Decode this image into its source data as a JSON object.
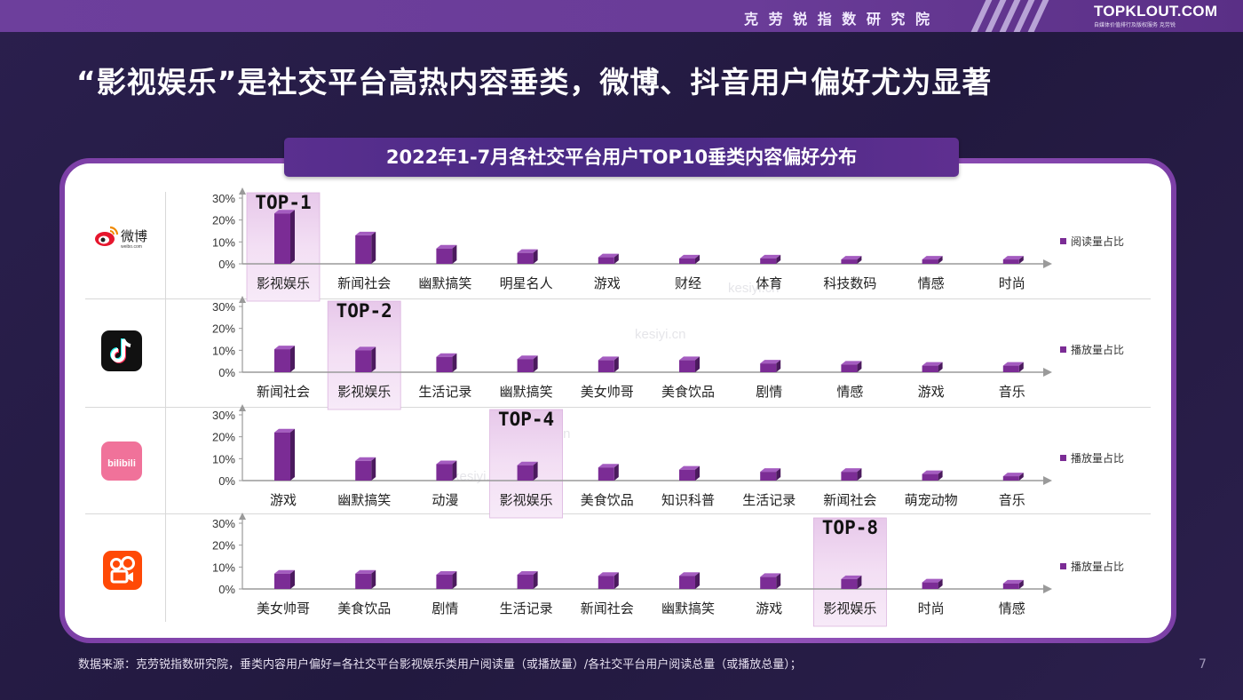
{
  "header": {
    "brand": "克 劳 锐 指 数 研 究 院",
    "logo": "TOPKLOUT.COM",
    "logo_sub": "自媒体价值排行及版权服务 克劳锐"
  },
  "headline": "“影视娱乐”是社交平台高热内容垂类，微博、抖音用户偏好尤为显著",
  "footnote": "数据来源：克劳锐指数研究院，垂类内容用户偏好=各社交平台影视娱乐类用户阅读量（或播放量）/各社交平台用户阅读总量（或播放总量）；",
  "page_number": "7",
  "watermark": "kesiyi.cn",
  "colors": {
    "bar": "#7b2c95",
    "bar_side": "#4b1a5e",
    "highlight": "#e7c8ea",
    "title_bg": "#4b2a86",
    "panel_border": "#8a4bb3"
  },
  "icons": {
    "weibo": "weibo-logo-icon",
    "douyin": "douyin-logo-icon",
    "bilibili": "bilibili-logo-icon",
    "kuaishou": "kuaishou-logo-icon"
  },
  "chart_data": {
    "title": "2022年1-7月各社交平台用户TOP10垂类内容偏好分布",
    "type": "bar",
    "charts": [
      {
        "platform": "weibo",
        "platform_label": "微博",
        "platform_sub": "weibo.com",
        "legend": "阅读量占比",
        "highlight_label": "TOP-1",
        "highlight_index": 0,
        "categories": [
          "影视娱乐",
          "新闻社会",
          "幽默搞笑",
          "明星名人",
          "游戏",
          "财经",
          "体育",
          "科技数码",
          "情感",
          "时尚"
        ],
        "values": [
          23,
          13,
          7,
          5,
          3,
          2.5,
          2.5,
          2,
          2,
          2
        ],
        "yticks": [
          "0%",
          "10%",
          "20%",
          "30%"
        ],
        "ylim": [
          0,
          30
        ]
      },
      {
        "platform": "douyin",
        "platform_label": "",
        "legend": "播放量占比",
        "highlight_label": "TOP-2",
        "highlight_index": 1,
        "categories": [
          "新闻社会",
          "影视娱乐",
          "生活记录",
          "幽默搞笑",
          "美女帅哥",
          "美食饮品",
          "剧情",
          "情感",
          "游戏",
          "音乐"
        ],
        "values": [
          10.5,
          10,
          7,
          6,
          5.5,
          5.5,
          4,
          3.5,
          3,
          3
        ],
        "yticks": [
          "0%",
          "10%",
          "20%",
          "30%"
        ],
        "ylim": [
          0,
          30
        ]
      },
      {
        "platform": "bilibili",
        "platform_label": "bilibili",
        "legend": "播放量占比",
        "highlight_label": "TOP-4",
        "highlight_index": 3,
        "categories": [
          "游戏",
          "幽默搞笑",
          "动漫",
          "影视娱乐",
          "美食饮品",
          "知识科普",
          "生活记录",
          "新闻社会",
          "萌宠动物",
          "音乐"
        ],
        "values": [
          22,
          9,
          7.5,
          7,
          6,
          5,
          4,
          4,
          3,
          2
        ],
        "yticks": [
          "0%",
          "10%",
          "20%",
          "30%"
        ],
        "ylim": [
          0,
          30
        ]
      },
      {
        "platform": "kuaishou",
        "platform_label": "",
        "legend": "播放量占比",
        "highlight_label": "TOP-8",
        "highlight_index": 7,
        "categories": [
          "美女帅哥",
          "美食饮品",
          "剧情",
          "生活记录",
          "新闻社会",
          "幽默搞笑",
          "游戏",
          "影视娱乐",
          "时尚",
          "情感"
        ],
        "values": [
          7,
          7,
          6.5,
          6.5,
          6,
          6,
          5.5,
          4.5,
          3,
          2.5
        ],
        "yticks": [
          "0%",
          "10%",
          "20%",
          "30%"
        ],
        "ylim": [
          0,
          30
        ]
      }
    ]
  }
}
